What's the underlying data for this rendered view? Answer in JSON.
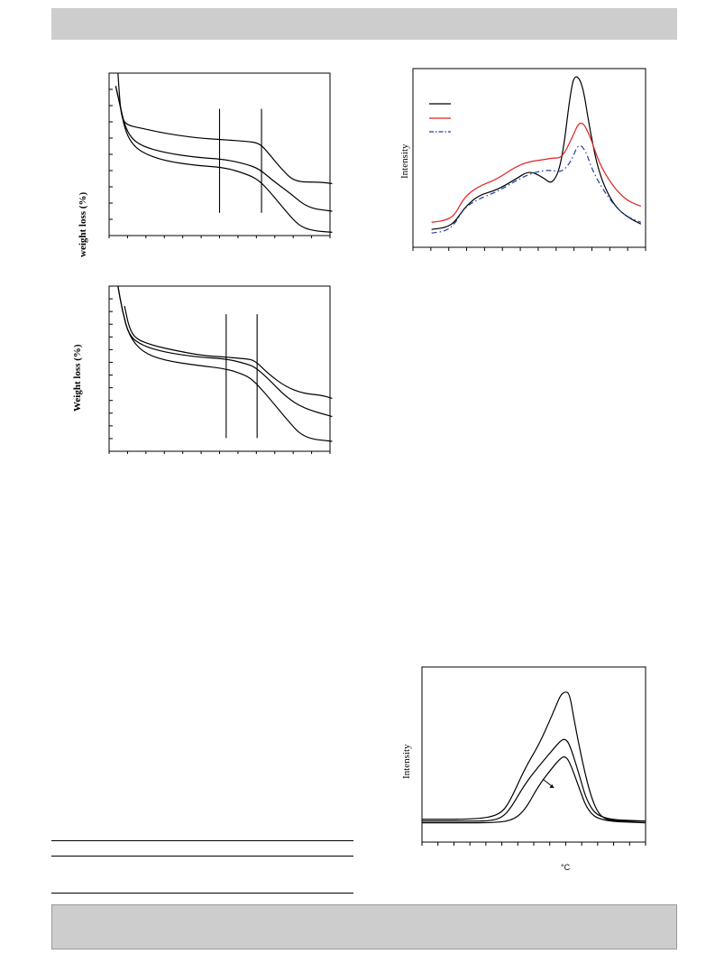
{
  "colors": {
    "band": "#cdcdcd",
    "black_series": "#000000",
    "red_series": "#e02020",
    "blue_series": "#1c3f9e"
  },
  "chart_data": [
    {
      "type": "line",
      "title": "",
      "ylabel": "weight loss (%)",
      "xlabel": "",
      "grid": false,
      "xlim": [
        0,
        100
      ],
      "ylim": [
        0,
        100
      ],
      "vertical_markers": [
        50,
        69
      ],
      "series": [
        {
          "values": [
            [
              4,
              100
            ],
            [
              5,
              80
            ],
            [
              6,
              72
            ],
            [
              8,
              68
            ],
            [
              15,
              66
            ],
            [
              25,
              63
            ],
            [
              40,
              60
            ],
            [
              52,
              59
            ],
            [
              62,
              58
            ],
            [
              68,
              57
            ],
            [
              72,
              51
            ],
            [
              78,
              41
            ],
            [
              84,
              33
            ],
            [
              95,
              33
            ],
            [
              101,
              32
            ]
          ]
        },
        {
          "values": [
            [
              3,
              92
            ],
            [
              5,
              80
            ],
            [
              7,
              68
            ],
            [
              10,
              60
            ],
            [
              15,
              55
            ],
            [
              25,
              51
            ],
            [
              40,
              48
            ],
            [
              52,
              47
            ],
            [
              62,
              44
            ],
            [
              68,
              41
            ],
            [
              74,
              34
            ],
            [
              82,
              26
            ],
            [
              90,
              17
            ],
            [
              101,
              15
            ]
          ]
        },
        {
          "values": [
            [
              3,
              92
            ],
            [
              5,
              80
            ],
            [
              7,
              66
            ],
            [
              10,
              57
            ],
            [
              15,
              51
            ],
            [
              25,
              46
            ],
            [
              40,
              43
            ],
            [
              52,
              42
            ],
            [
              62,
              38
            ],
            [
              68,
              34
            ],
            [
              74,
              25
            ],
            [
              80,
              15
            ],
            [
              86,
              6
            ],
            [
              92,
              3
            ],
            [
              101,
              2
            ]
          ]
        }
      ]
    },
    {
      "type": "line",
      "title": "",
      "ylabel": "Weight loss (%)",
      "xlabel": "",
      "grid": false,
      "xlim": [
        0,
        100
      ],
      "ylim": [
        0,
        100
      ],
      "vertical_markers": [
        53,
        67
      ],
      "series": [
        {
          "values": [
            [
              7,
              88
            ],
            [
              9,
              75
            ],
            [
              12,
              68
            ],
            [
              20,
              64
            ],
            [
              30,
              61
            ],
            [
              42,
              58
            ],
            [
              53,
              57
            ],
            [
              62,
              56
            ],
            [
              66,
              55
            ],
            [
              72,
              47
            ],
            [
              80,
              39
            ],
            [
              88,
              35
            ],
            [
              96,
              34
            ],
            [
              101,
              32
            ]
          ]
        },
        {
          "values": [
            [
              4,
              100
            ],
            [
              6,
              85
            ],
            [
              9,
              70
            ],
            [
              15,
              64
            ],
            [
              25,
              60
            ],
            [
              40,
              57
            ],
            [
              53,
              56
            ],
            [
              62,
              53
            ],
            [
              66,
              51
            ],
            [
              72,
              44
            ],
            [
              80,
              33
            ],
            [
              88,
              26
            ],
            [
              101,
              21
            ]
          ]
        },
        {
          "values": [
            [
              4,
              100
            ],
            [
              6,
              85
            ],
            [
              9,
              70
            ],
            [
              15,
              60
            ],
            [
              25,
              55
            ],
            [
              40,
              52
            ],
            [
              53,
              50
            ],
            [
              62,
              46
            ],
            [
              66,
              42
            ],
            [
              72,
              33
            ],
            [
              80,
              20
            ],
            [
              88,
              8
            ],
            [
              101,
              6
            ]
          ]
        }
      ]
    },
    {
      "type": "line",
      "title": "",
      "ylabel": "Intensity",
      "xlabel": "",
      "grid": false,
      "legend": "top-left",
      "xlim": [
        0,
        100
      ],
      "ylim": [
        0,
        100
      ],
      "series": [
        {
          "color": "#000000",
          "dash": "solid",
          "values": [
            [
              8,
              10
            ],
            [
              14,
              11
            ],
            [
              18,
              14
            ],
            [
              22,
              22
            ],
            [
              28,
              29
            ],
            [
              36,
              32
            ],
            [
              44,
              38
            ],
            [
              50,
              43
            ],
            [
              56,
              39
            ],
            [
              60,
              35
            ],
            [
              64,
              47
            ],
            [
              68,
              90
            ],
            [
              70,
              97
            ],
            [
              73,
              91
            ],
            [
              76,
              66
            ],
            [
              80,
              41
            ],
            [
              86,
              24
            ],
            [
              92,
              17
            ],
            [
              98,
              13
            ]
          ]
        },
        {
          "color": "#e02020",
          "dash": "solid",
          "values": [
            [
              8,
              14
            ],
            [
              14,
              15
            ],
            [
              18,
              18
            ],
            [
              22,
              28
            ],
            [
              28,
              34
            ],
            [
              36,
              38
            ],
            [
              44,
              45
            ],
            [
              50,
              48
            ],
            [
              56,
              49
            ],
            [
              60,
              50
            ],
            [
              64,
              50
            ],
            [
              68,
              60
            ],
            [
              72,
              72
            ],
            [
              76,
              63
            ],
            [
              80,
              47
            ],
            [
              86,
              34
            ],
            [
              92,
              26
            ],
            [
              98,
              23
            ]
          ]
        },
        {
          "color": "#1c3f9e",
          "dash": "dashdot",
          "values": [
            [
              8,
              8
            ],
            [
              14,
              9
            ],
            [
              18,
              13
            ],
            [
              22,
              22
            ],
            [
              28,
              27
            ],
            [
              36,
              31
            ],
            [
              44,
              37
            ],
            [
              50,
              41
            ],
            [
              56,
              43
            ],
            [
              60,
              43
            ],
            [
              64,
              42
            ],
            [
              68,
              48
            ],
            [
              71,
              58
            ],
            [
              74,
              55
            ],
            [
              78,
              40
            ],
            [
              86,
              24
            ],
            [
              92,
              17
            ],
            [
              98,
              14
            ]
          ]
        }
      ]
    },
    {
      "type": "line",
      "title": "",
      "ylabel": "Intensity",
      "xlabel": "°C",
      "grid": false,
      "xlim": [
        0,
        100
      ],
      "ylim": [
        0,
        100
      ],
      "annotation": "arrow",
      "series": [
        {
          "values": [
            [
              0,
              13
            ],
            [
              20,
              13
            ],
            [
              30,
              14
            ],
            [
              36,
              17
            ],
            [
              40,
              25
            ],
            [
              46,
              42
            ],
            [
              52,
              55
            ],
            [
              56,
              66
            ],
            [
              60,
              78
            ],
            [
              62,
              84
            ],
            [
              64,
              86
            ],
            [
              66,
              85
            ],
            [
              68,
              70
            ],
            [
              72,
              44
            ],
            [
              76,
              24
            ],
            [
              80,
              14
            ],
            [
              86,
              12
            ],
            [
              100,
              12
            ]
          ]
        },
        {
          "values": [
            [
              0,
              12
            ],
            [
              20,
              12
            ],
            [
              30,
              12
            ],
            [
              36,
              14
            ],
            [
              40,
              20
            ],
            [
              46,
              33
            ],
            [
              52,
              43
            ],
            [
              58,
              52
            ],
            [
              62,
              58
            ],
            [
              64,
              59
            ],
            [
              66,
              56
            ],
            [
              70,
              40
            ],
            [
              74,
              22
            ],
            [
              80,
              13
            ],
            [
              100,
              12
            ]
          ]
        },
        {
          "values": [
            [
              0,
              11
            ],
            [
              20,
              11
            ],
            [
              30,
              11
            ],
            [
              40,
              12
            ],
            [
              46,
              18
            ],
            [
              52,
              32
            ],
            [
              58,
              42
            ],
            [
              62,
              48
            ],
            [
              64,
              49
            ],
            [
              66,
              46
            ],
            [
              70,
              32
            ],
            [
              74,
              18
            ],
            [
              80,
              12
            ],
            [
              100,
              11
            ]
          ]
        }
      ]
    }
  ]
}
